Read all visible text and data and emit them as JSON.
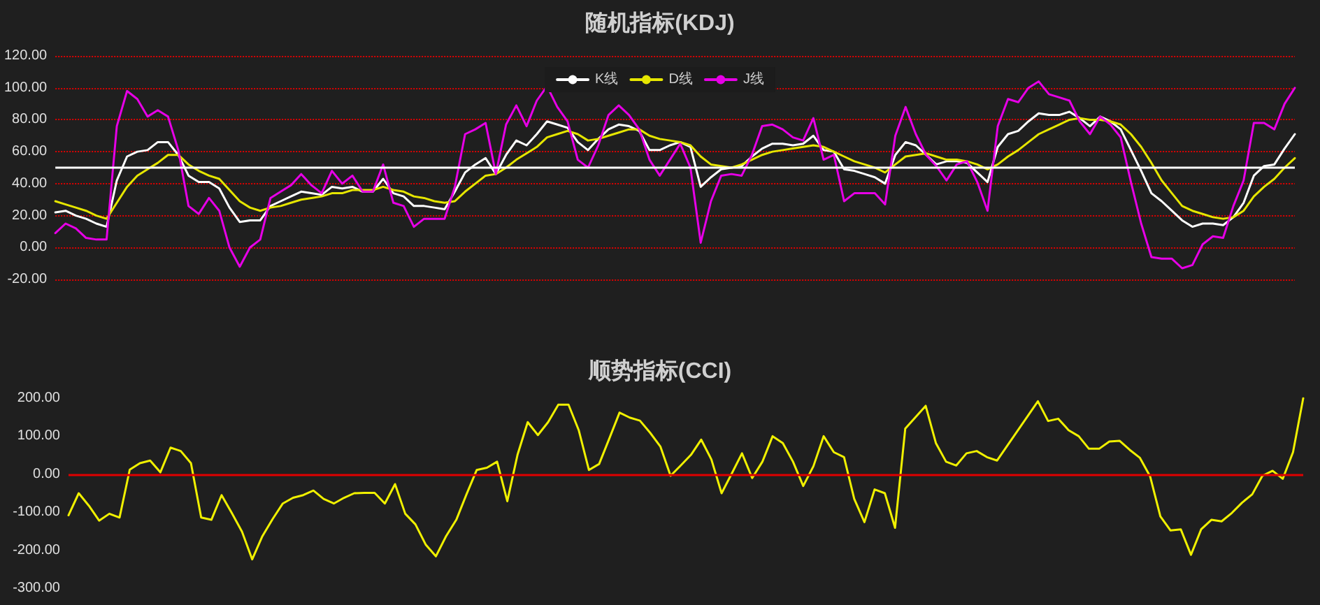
{
  "chart_data": [
    {
      "type": "line",
      "title": "随机指标(KDJ)",
      "categories": [
        null,
        null,
        null,
        null,
        null,
        null,
        null,
        null,
        null,
        null,
        null,
        null,
        null,
        null,
        null,
        null,
        null,
        null,
        null,
        null,
        null,
        null,
        null,
        null,
        null,
        null,
        null,
        null,
        null,
        null,
        null,
        null,
        null,
        null,
        null,
        null,
        null,
        null,
        null,
        null,
        null,
        null,
        null,
        null,
        null,
        null,
        null,
        null,
        null,
        null,
        null,
        null,
        null,
        null,
        null,
        null,
        null,
        null,
        null,
        null,
        null,
        null,
        null,
        null,
        null,
        null,
        null,
        null,
        null,
        null,
        null,
        null,
        null,
        null,
        null,
        null,
        null,
        null,
        null,
        null,
        null,
        null,
        null,
        null,
        null,
        null,
        null,
        null,
        null,
        null,
        null,
        null,
        null,
        null,
        null,
        null,
        null,
        null,
        null,
        null,
        null,
        null,
        null,
        null,
        null,
        null,
        null,
        null,
        null,
        null,
        null,
        null,
        null,
        null,
        null,
        null,
        null,
        null,
        null,
        null,
        null,
        null
      ],
      "series": [
        {
          "name": "K线",
          "color": "#ffffff",
          "values": [
            22,
            23,
            20,
            18,
            15,
            13,
            42,
            57,
            60,
            61,
            66,
            66,
            58,
            45,
            41,
            41,
            37,
            25,
            16,
            17,
            17,
            26,
            29,
            32,
            35,
            34,
            33,
            38,
            37,
            38,
            35,
            35,
            43,
            34,
            32,
            26,
            26,
            25,
            24,
            35,
            47,
            52,
            56,
            46,
            58,
            67,
            64,
            71,
            79,
            77,
            75,
            66,
            61,
            68,
            74,
            77,
            76,
            73,
            61,
            61,
            64,
            66,
            63,
            38,
            44,
            49,
            50,
            51,
            57,
            62,
            65,
            65,
            64,
            65,
            70,
            61,
            60,
            49,
            48,
            46,
            44,
            40,
            58,
            66,
            64,
            58,
            52,
            54,
            54,
            53,
            47,
            41,
            63,
            71,
            73,
            79,
            84,
            83,
            83,
            85,
            81,
            76,
            82,
            79,
            74,
            61,
            48,
            34,
            29,
            23,
            17,
            13,
            15,
            15,
            14,
            19,
            28,
            45,
            51,
            52,
            62,
            71
          ]
        },
        {
          "name": "D线",
          "color": "#e6e600",
          "values": [
            29,
            27,
            25,
            23,
            20,
            18,
            28,
            38,
            45,
            49,
            53,
            58,
            58,
            52,
            48,
            45,
            43,
            36,
            29,
            25,
            23,
            25,
            26,
            28,
            30,
            31,
            32,
            34,
            34,
            36,
            36,
            36,
            38,
            36,
            35,
            32,
            31,
            29,
            28,
            29,
            35,
            40,
            45,
            46,
            50,
            55,
            59,
            63,
            69,
            71,
            73,
            71,
            67,
            68,
            70,
            72,
            74,
            74,
            70,
            68,
            67,
            66,
            64,
            57,
            52,
            51,
            50,
            52,
            55,
            58,
            60,
            61,
            62,
            63,
            64,
            63,
            60,
            57,
            54,
            52,
            50,
            47,
            52,
            57,
            58,
            59,
            57,
            55,
            55,
            54,
            52,
            49,
            52,
            57,
            61,
            66,
            71,
            74,
            77,
            80,
            81,
            80,
            80,
            79,
            77,
            71,
            63,
            53,
            42,
            34,
            26,
            23,
            21,
            19,
            18,
            19,
            23,
            32,
            38,
            43,
            50,
            56
          ]
        },
        {
          "name": "J线",
          "color": "#e600e6",
          "values": [
            9,
            15,
            12,
            6,
            5,
            5,
            76,
            98,
            93,
            82,
            86,
            82,
            61,
            26,
            21,
            31,
            23,
            0,
            -12,
            0,
            5,
            31,
            35,
            39,
            46,
            39,
            34,
            48,
            40,
            45,
            35,
            35,
            52,
            28,
            26,
            13,
            18,
            18,
            18,
            38,
            71,
            74,
            78,
            46,
            77,
            89,
            76,
            92,
            101,
            88,
            79,
            55,
            50,
            64,
            83,
            89,
            83,
            74,
            55,
            45,
            55,
            65,
            50,
            3,
            29,
            45,
            46,
            45,
            58,
            76,
            77,
            74,
            69,
            67,
            81,
            55,
            58,
            29,
            34,
            34,
            34,
            27,
            70,
            88,
            71,
            58,
            51,
            42,
            52,
            54,
            41,
            23,
            76,
            93,
            91,
            100,
            104,
            96,
            94,
            92,
            79,
            71,
            82,
            77,
            69,
            41,
            15,
            -6,
            -7,
            -7,
            -13,
            -11,
            2,
            7,
            6,
            26,
            42,
            78,
            78,
            74,
            90,
            100
          ]
        }
      ],
      "ylim": [
        -20,
        120
      ],
      "yticks": [
        {
          "value": -20,
          "label": "-20.00"
        },
        {
          "value": 0,
          "label": "0.00"
        },
        {
          "value": 20,
          "label": "20.00"
        },
        {
          "value": 40,
          "label": "40.00"
        },
        {
          "value": 60,
          "label": "60.00"
        },
        {
          "value": 80,
          "label": "80.00"
        },
        {
          "value": 100,
          "label": "100.00"
        },
        {
          "value": 120,
          "label": "120.00"
        }
      ],
      "grid": "y",
      "legend": "top",
      "marker": "none",
      "line_style": "solid",
      "ref_lines": [
        {
          "axis": "y",
          "value": 50,
          "label": null,
          "color": "#ffffff",
          "line_style": "solid"
        }
      ]
    },
    {
      "type": "line",
      "title": "顺势指标(CCI)",
      "categories": [
        null,
        null,
        null,
        null,
        null,
        null,
        null,
        null,
        null,
        null,
        null,
        null,
        null,
        null,
        null,
        null,
        null,
        null,
        null,
        null,
        null,
        null,
        null,
        null,
        null,
        null,
        null,
        null,
        null,
        null,
        null,
        null,
        null,
        null,
        null,
        null,
        null,
        null,
        null,
        null,
        null,
        null,
        null,
        null,
        null,
        null,
        null,
        null,
        null,
        null,
        null,
        null,
        null,
        null,
        null,
        null,
        null,
        null,
        null,
        null,
        null,
        null,
        null,
        null,
        null,
        null,
        null,
        null,
        null,
        null,
        null,
        null,
        null,
        null,
        null,
        null,
        null,
        null,
        null,
        null,
        null,
        null,
        null,
        null,
        null,
        null,
        null,
        null,
        null,
        null,
        null,
        null,
        null,
        null,
        null,
        null,
        null,
        null,
        null,
        null,
        null,
        null,
        null,
        null,
        null,
        null,
        null,
        null,
        null,
        null,
        null,
        null,
        null,
        null,
        null,
        null,
        null,
        null,
        null,
        null,
        null,
        null
      ],
      "series": [
        {
          "color": "#f0f000",
          "values": [
            -108,
            -50,
            -83,
            -122,
            -104,
            -114,
            12,
            29,
            36,
            5,
            70,
            61,
            29,
            -114,
            -120,
            -55,
            -102,
            -151,
            -224,
            -163,
            -118,
            -77,
            -62,
            -55,
            -43,
            -65,
            -77,
            -62,
            -50,
            -49,
            -49,
            -77,
            -26,
            -104,
            -132,
            -185,
            -216,
            -163,
            -120,
            -53,
            11,
            17,
            33,
            -71,
            51,
            137,
            103,
            137,
            183,
            183,
            116,
            11,
            27,
            94,
            162,
            149,
            141,
            109,
            73,
            -4,
            23,
            51,
            91,
            39,
            -50,
            2,
            55,
            -10,
            33,
            100,
            82,
            33,
            -31,
            21,
            100,
            58,
            45,
            -65,
            -126,
            -40,
            -50,
            -141,
            120,
            null,
            180,
            82,
            33,
            23,
            55,
            61,
            45,
            36,
            null,
            null,
            null,
            192,
            140,
            146,
            116,
            100,
            67,
            67,
            86,
            88,
            64,
            43,
            -6,
            -111,
            -148,
            -145,
            -212,
            -145,
            -120,
            -124,
            -102,
            -75,
            -53,
            -4,
            9,
            -12,
            58,
            200
          ]
        }
      ],
      "ylim": [
        -300,
        200
      ],
      "yticks": [
        {
          "value": -300,
          "label": "-300.00"
        },
        {
          "value": -200,
          "label": "-200.00"
        },
        {
          "value": -100,
          "label": "-100.00"
        },
        {
          "value": 0,
          "label": "0.00"
        },
        {
          "value": 100,
          "label": "100.00"
        },
        {
          "value": 200,
          "label": "200.00"
        }
      ],
      "marker": "none",
      "line_style": "solid",
      "ref_lines": [
        {
          "axis": "y",
          "value": 0,
          "label": null,
          "color": "#e00000",
          "line_style": "solid"
        }
      ]
    }
  ]
}
